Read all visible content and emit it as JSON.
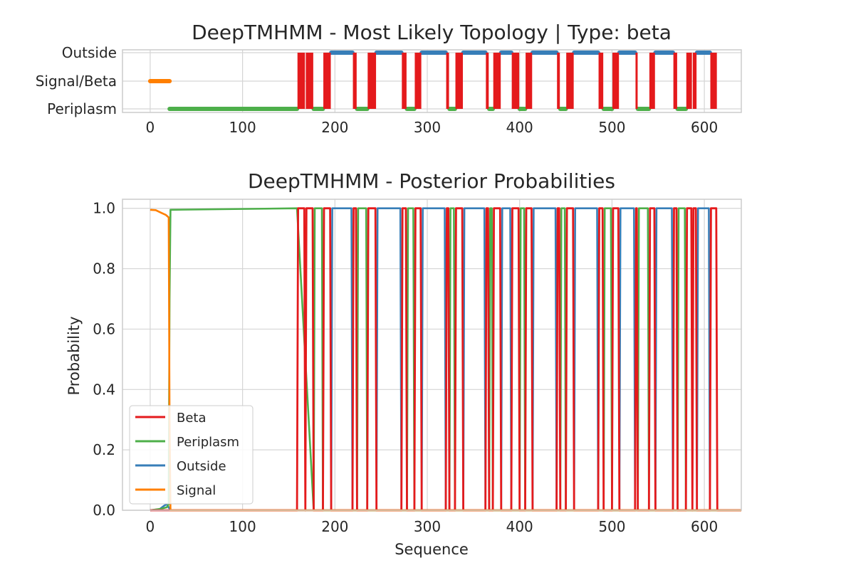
{
  "chart_data": [
    {
      "type": "line",
      "title": "DeepTMHMM - Most Likely Topology | Type: beta",
      "xlabel": "",
      "ylabel": "",
      "xlim": [
        -30,
        640
      ],
      "xticks": [
        0,
        100,
        200,
        300,
        400,
        500,
        600
      ],
      "categories": [
        "Periplasm",
        "Signal/Beta",
        "Outside"
      ],
      "grid": true,
      "colors": {
        "beta": "#e41a1c",
        "periplasm": "#4daf4a",
        "outside": "#377eb8",
        "signal": "#ff7f00"
      },
      "segments": {
        "signal": [
          [
            0,
            21
          ]
        ],
        "periplasm": [
          [
            21,
            159
          ],
          [
            177,
            187
          ],
          [
            224,
            235
          ],
          [
            278,
            286
          ],
          [
            324,
            330
          ],
          [
            367,
            371
          ],
          [
            400,
            406
          ],
          [
            444,
            450
          ],
          [
            491,
            500
          ],
          [
            528,
            540
          ],
          [
            571,
            580
          ]
        ],
        "outside": [
          [
            196,
            219
          ],
          [
            245,
            272
          ],
          [
            294,
            320
          ],
          [
            339,
            363
          ],
          [
            380,
            391
          ],
          [
            414,
            440
          ],
          [
            459,
            485
          ],
          [
            508,
            525
          ],
          [
            547,
            566
          ],
          [
            592,
            606
          ]
        ],
        "beta": [
          [
            159,
            168
          ],
          [
            168,
            177
          ],
          [
            187,
            196
          ],
          [
            219,
            224
          ],
          [
            235,
            245
          ],
          [
            272,
            278
          ],
          [
            286,
            294
          ],
          [
            320,
            324
          ],
          [
            330,
            339
          ],
          [
            363,
            367
          ],
          [
            371,
            380
          ],
          [
            391,
            400
          ],
          [
            406,
            414
          ],
          [
            440,
            444
          ],
          [
            450,
            459
          ],
          [
            485,
            491
          ],
          [
            500,
            508
          ],
          [
            525,
            528
          ],
          [
            540,
            547
          ],
          [
            566,
            571
          ],
          [
            580,
            587
          ],
          [
            587,
            592
          ],
          [
            606,
            614
          ]
        ]
      }
    },
    {
      "type": "line",
      "title": "DeepTMHMM - Posterior Probabilities",
      "xlabel": "Sequence",
      "ylabel": "Probability",
      "xlim": [
        -30,
        640
      ],
      "ylim": [
        0.0,
        1.03
      ],
      "xticks": [
        0,
        100,
        200,
        300,
        400,
        500,
        600
      ],
      "yticks": [
        "0.0",
        "0.2",
        "0.4",
        "0.6",
        "0.8",
        "1.0"
      ],
      "grid": true,
      "legend_position": "lower-left",
      "series": [
        {
          "name": "Beta",
          "color": "#e41a1c"
        },
        {
          "name": "Periplasm",
          "color": "#4daf4a"
        },
        {
          "name": "Outside",
          "color": "#377eb8"
        },
        {
          "name": "Signal",
          "color": "#ff7f00"
        }
      ],
      "signal_curve": {
        "x": [
          0,
          6,
          12,
          17,
          20,
          21,
          22
        ],
        "y": [
          0.995,
          0.994,
          0.985,
          0.978,
          0.97,
          0.3,
          0.0
        ]
      },
      "periplasm_start_curve": {
        "x": [
          0,
          12,
          18,
          20,
          21,
          22,
          159
        ],
        "y": [
          0.0,
          0.005,
          0.01,
          0.02,
          0.7,
          0.995,
          1.0
        ]
      },
      "outside_start_curve": {
        "x": [
          0,
          10,
          15,
          18,
          20,
          22
        ],
        "y": [
          0.0,
          0.003,
          0.015,
          0.02,
          0.01,
          0.0
        ]
      }
    }
  ]
}
